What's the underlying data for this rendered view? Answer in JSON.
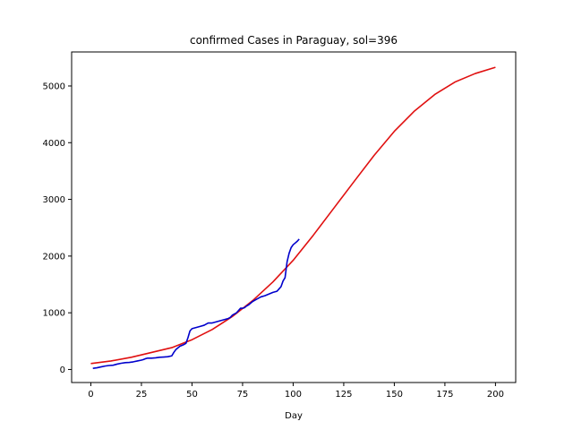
{
  "chart_data": {
    "type": "line",
    "title": "confirmed Cases in Paraguay, sol=396",
    "xlabel": "Day",
    "ylabel": "",
    "xlim": [
      -9.5,
      210
    ],
    "ylim": [
      -230,
      5600
    ],
    "xticks": [
      0,
      25,
      50,
      75,
      100,
      125,
      150,
      175,
      200
    ],
    "yticks": [
      0,
      1000,
      2000,
      3000,
      4000,
      5000
    ],
    "grid": false,
    "legend": "none",
    "series": [
      {
        "color": "#e01010",
        "style": "model",
        "x": [
          0,
          10,
          20,
          30,
          40,
          50,
          60,
          70,
          80,
          90,
          100,
          110,
          120,
          130,
          140,
          150,
          160,
          170,
          180,
          190,
          200
        ],
        "y": [
          105,
          150,
          215,
          300,
          385,
          525,
          705,
          935,
          1215,
          1545,
          1925,
          2370,
          2840,
          3310,
          3775,
          4200,
          4560,
          4850,
          5070,
          5220,
          5330
        ]
      },
      {
        "color": "#0000cc",
        "style": "observed",
        "x": [
          1,
          3,
          5,
          7,
          9,
          11,
          13,
          15,
          17,
          19,
          21,
          23,
          25,
          26,
          27,
          28,
          30,
          32,
          34,
          36,
          38,
          40,
          41,
          42,
          43,
          44,
          46,
          47,
          48,
          49,
          50,
          52,
          54,
          56,
          57,
          58,
          60,
          62,
          64,
          66,
          68,
          69,
          70,
          72,
          73,
          74,
          75,
          76,
          77,
          78,
          80,
          82,
          84,
          86,
          88,
          90,
          92,
          93,
          94,
          95,
          96,
          97,
          98,
          99,
          100,
          101,
          102,
          103
        ],
        "y": [
          20,
          30,
          45,
          60,
          70,
          75,
          95,
          110,
          120,
          125,
          135,
          150,
          165,
          175,
          190,
          200,
          200,
          205,
          215,
          220,
          225,
          240,
          300,
          350,
          380,
          410,
          440,
          460,
          560,
          680,
          720,
          740,
          760,
          780,
          800,
          820,
          820,
          840,
          860,
          880,
          900,
          920,
          960,
          1000,
          1040,
          1080,
          1080,
          1090,
          1120,
          1140,
          1200,
          1240,
          1280,
          1300,
          1330,
          1360,
          1380,
          1420,
          1460,
          1560,
          1620,
          1900,
          2050,
          2150,
          2200,
          2230,
          2260,
          2300
        ]
      }
    ]
  }
}
